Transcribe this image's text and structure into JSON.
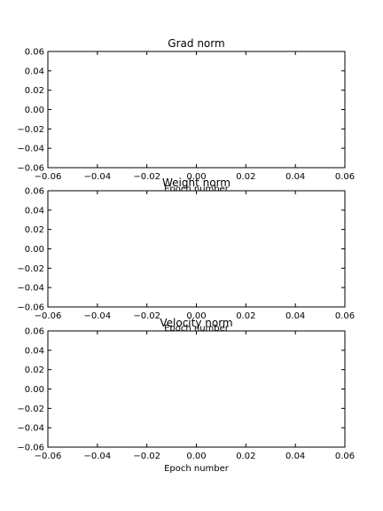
{
  "chart_data": [
    {
      "type": "line",
      "title": "Grad norm",
      "xlabel": "Epoch number",
      "ylabel": "",
      "xlim": [
        -0.06,
        0.06
      ],
      "ylim": [
        -0.06,
        0.06
      ],
      "x_ticks": [
        "−0.06",
        "−0.04",
        "−0.02",
        "0.00",
        "0.02",
        "0.04",
        "0.06"
      ],
      "y_ticks": [
        "0.06",
        "0.04",
        "0.02",
        "0.00",
        "−0.02",
        "−0.04",
        "−0.06"
      ],
      "series": [],
      "grid": false
    },
    {
      "type": "line",
      "title": "Weight norm",
      "xlabel": "Epoch number",
      "ylabel": "",
      "xlim": [
        -0.06,
        0.06
      ],
      "ylim": [
        -0.06,
        0.06
      ],
      "x_ticks": [
        "−0.06",
        "−0.04",
        "−0.02",
        "0.00",
        "0.02",
        "0.04",
        "0.06"
      ],
      "y_ticks": [
        "0.06",
        "0.04",
        "0.02",
        "0.00",
        "−0.02",
        "−0.04",
        "−0.06"
      ],
      "series": [],
      "grid": false
    },
    {
      "type": "line",
      "title": "Velocity norm",
      "xlabel": "Epoch number",
      "ylabel": "",
      "xlim": [
        -0.06,
        0.06
      ],
      "ylim": [
        -0.06,
        0.06
      ],
      "x_ticks": [
        "−0.06",
        "−0.04",
        "−0.02",
        "0.00",
        "0.02",
        "0.04",
        "0.06"
      ],
      "y_ticks": [
        "0.06",
        "0.04",
        "0.02",
        "0.00",
        "−0.02",
        "−0.04",
        "−0.06"
      ],
      "series": [],
      "grid": false
    }
  ]
}
